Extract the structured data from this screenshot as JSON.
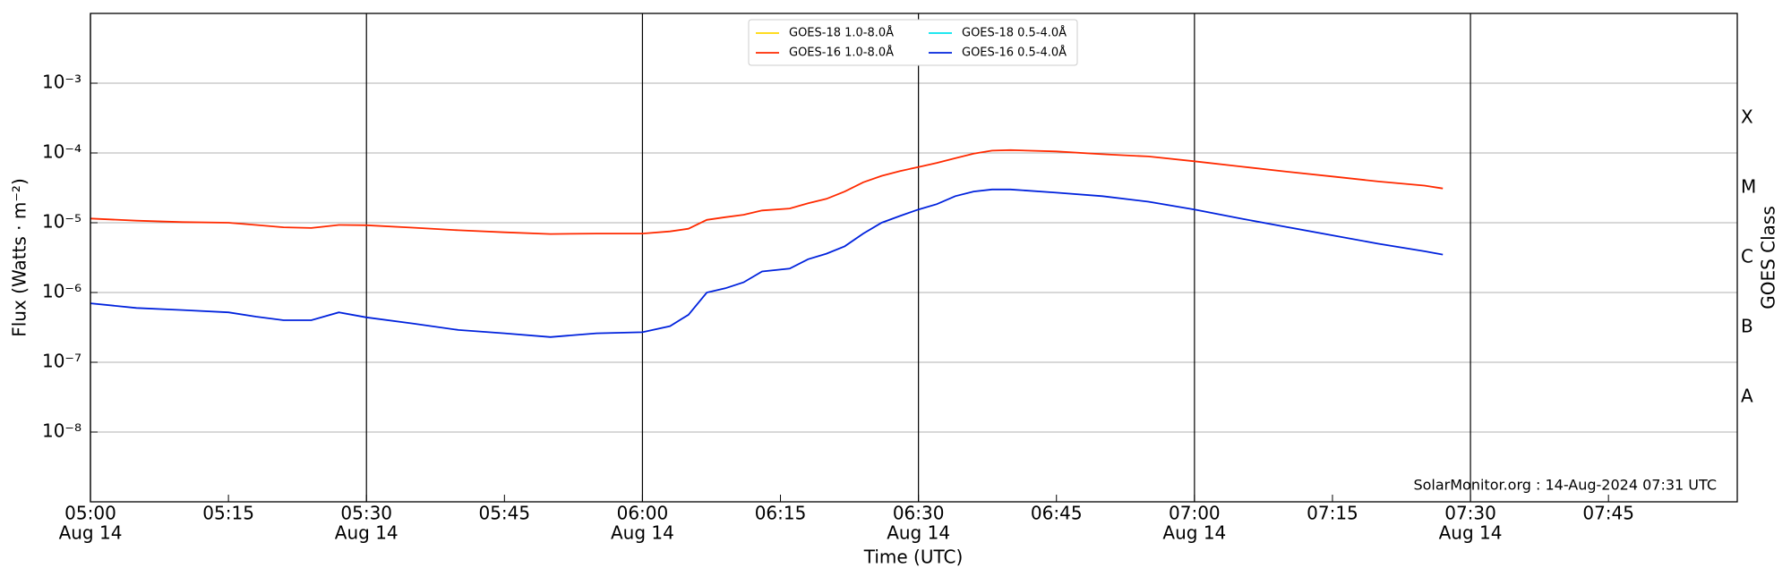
{
  "chart_data": {
    "type": "line",
    "x_label": "Time (UTC)",
    "y_label": "Flux (Watts · m⁻²)",
    "y2_label": "GOES Class",
    "annotation": "SolarMonitor.org : 14-Aug-2024 07:31 UTC",
    "log_scale": true,
    "grid": true,
    "x": [
      "05:00",
      "05:05",
      "05:10",
      "05:15",
      "05:18",
      "05:21",
      "05:24",
      "05:27",
      "05:30",
      "05:35",
      "05:40",
      "05:45",
      "05:50",
      "05:55",
      "06:00",
      "06:03",
      "06:05",
      "06:07",
      "06:09",
      "06:11",
      "06:13",
      "06:16",
      "06:18",
      "06:20",
      "06:22",
      "06:24",
      "06:26",
      "06:28",
      "06:30",
      "06:32",
      "06:34",
      "06:36",
      "06:38",
      "06:40",
      "06:45",
      "06:50",
      "06:55",
      "07:00",
      "07:05",
      "07:10",
      "07:15",
      "07:20",
      "07:25",
      "07:27"
    ],
    "xlim": [
      "05:00",
      "07:59"
    ],
    "xticks": [
      {
        "value": "05:00",
        "label": "05:00",
        "date": "Aug 14"
      },
      "05:15",
      {
        "value": "05:30",
        "label": "05:30",
        "date": "Aug 14"
      },
      "05:45",
      {
        "value": "06:00",
        "label": "06:00",
        "date": "Aug 14"
      },
      "06:15",
      {
        "value": "06:30",
        "label": "06:30",
        "date": "Aug 14"
      },
      "06:45",
      {
        "value": "07:00",
        "label": "07:00",
        "date": "Aug 14"
      },
      "07:15",
      {
        "value": "07:30",
        "label": "07:30",
        "date": "Aug 14"
      },
      "07:45"
    ],
    "ylim": [
      1e-09,
      0.01
    ],
    "yticks": [
      {
        "value": 1e-08,
        "label": "10⁻⁸"
      },
      {
        "value": 1e-07,
        "label": "10⁻⁷"
      },
      {
        "value": 1e-06,
        "label": "10⁻⁶"
      },
      {
        "value": 1e-05,
        "label": "10⁻⁵"
      },
      {
        "value": 0.0001,
        "label": "10⁻⁴"
      },
      {
        "value": 0.001,
        "label": "10⁻³"
      }
    ],
    "y2lim": [
      1e-09,
      0.01
    ],
    "y2ticks": [
      {
        "value": 3.16e-08,
        "label": "A"
      },
      {
        "value": 3.16e-07,
        "label": "B"
      },
      {
        "value": 3.16e-06,
        "label": "C"
      },
      {
        "value": 3.16e-05,
        "label": "M"
      },
      {
        "value": 0.000316,
        "label": "X"
      }
    ],
    "series": [
      {
        "name": "GOES-18 1.0-8.0Å",
        "color": "#ffd700",
        "values": [
          null,
          null,
          null,
          null,
          null,
          null,
          null,
          null,
          null,
          null,
          null,
          null,
          null,
          null,
          null,
          null,
          null,
          null,
          null,
          null,
          null,
          null,
          null,
          null,
          null,
          null,
          null,
          null,
          null,
          null,
          null,
          null,
          null,
          null,
          null,
          null,
          null,
          null,
          null,
          null,
          null,
          null,
          null,
          null
        ]
      },
      {
        "name": "GOES-16 1.0-8.0Å",
        "color": "#ff2a00",
        "values": [
          1.15e-05,
          1.07e-05,
          1.02e-05,
          1e-05,
          9.3e-06,
          8.6e-06,
          8.4e-06,
          9.3e-06,
          9.2e-06,
          8.5e-06,
          7.8e-06,
          7.3e-06,
          6.9e-06,
          7e-06,
          7e-06,
          7.5e-06,
          8.2e-06,
          1.1e-05,
          1.2e-05,
          1.3e-05,
          1.5e-05,
          1.6e-05,
          1.9e-05,
          2.2e-05,
          2.8e-05,
          3.8e-05,
          4.7e-05,
          5.5e-05,
          6.3e-05,
          7.2e-05,
          8.4e-05,
          9.8e-05,
          0.000108,
          0.00011,
          0.000105,
          9.6e-05,
          8.9e-05,
          7.6e-05,
          6.4e-05,
          5.4e-05,
          4.6e-05,
          3.9e-05,
          3.4e-05,
          3.1e-05
        ]
      },
      {
        "name": "GOES-18 0.5-4.0Å",
        "color": "#00e5ee",
        "values": [
          null,
          null,
          null,
          null,
          null,
          null,
          null,
          null,
          null,
          null,
          null,
          null,
          null,
          null,
          null,
          null,
          null,
          null,
          null,
          null,
          null,
          null,
          null,
          null,
          null,
          null,
          null,
          null,
          null,
          null,
          null,
          null,
          null,
          null,
          null,
          null,
          null,
          null,
          null,
          null,
          null,
          null,
          null,
          null
        ]
      },
      {
        "name": "GOES-16 0.5-4.0Å",
        "color": "#0022dd",
        "values": [
          7e-07,
          6e-07,
          5.6e-07,
          5.2e-07,
          4.5e-07,
          4e-07,
          4e-07,
          5.2e-07,
          4.4e-07,
          3.6e-07,
          2.9e-07,
          2.6e-07,
          2.3e-07,
          2.6e-07,
          2.7e-07,
          3.3e-07,
          4.8e-07,
          1e-06,
          1.15e-06,
          1.4e-06,
          2e-06,
          2.2e-06,
          3e-06,
          3.6e-06,
          4.6e-06,
          7e-06,
          1e-05,
          1.25e-05,
          1.55e-05,
          1.85e-05,
          2.4e-05,
          2.8e-05,
          3e-05,
          3e-05,
          2.7e-05,
          2.4e-05,
          2e-05,
          1.55e-05,
          1.15e-05,
          8.7e-06,
          6.6e-06,
          5e-06,
          3.9e-06,
          3.5e-06
        ]
      }
    ]
  }
}
